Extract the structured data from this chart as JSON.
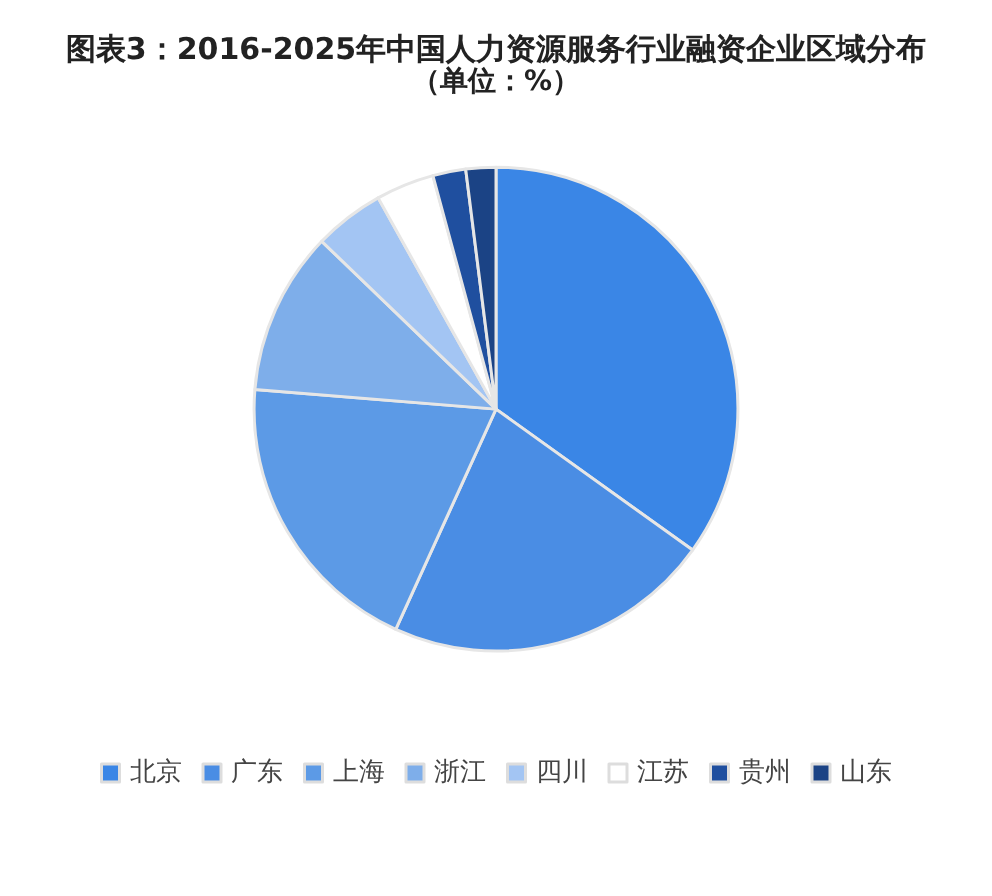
{
  "chart_data": {
    "type": "pie",
    "title": "图表3：2016-2025年中国人力资源服务行业融资企业区域分布",
    "subtitle": "（单位：%）",
    "categories": [
      "北京",
      "广东",
      "上海",
      "浙江",
      "四川",
      "江苏",
      "贵州",
      "山东"
    ],
    "values": [
      34.9,
      21.9,
      19.5,
      10.9,
      4.7,
      3.9,
      2.2,
      2.0
    ],
    "colors": [
      "#3a86e6",
      "#4a8de4",
      "#5c9ae6",
      "#7eaeea",
      "#a3c5f3",
      "#ffffff",
      "#1f4f9f",
      "#1b4385"
    ],
    "legend": "bottom"
  }
}
